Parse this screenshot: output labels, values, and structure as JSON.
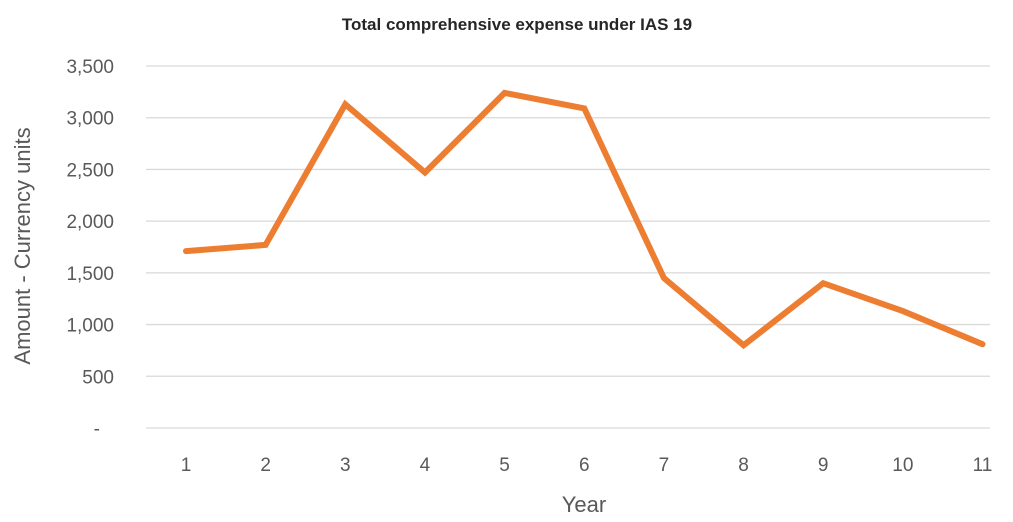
{
  "chart_data": {
    "type": "line",
    "title": "Total comprehensive expense under IAS 19",
    "xlabel": "Year",
    "ylabel": "Amount - Currency units",
    "categories": [
      "1",
      "2",
      "3",
      "4",
      "5",
      "6",
      "7",
      "8",
      "9",
      "10",
      "11"
    ],
    "series": [
      {
        "values": [
          1710,
          1770,
          3130,
          2470,
          3240,
          3090,
          1450,
          800,
          1400,
          1130,
          810
        ]
      }
    ],
    "ylim": [
      0,
      3500
    ],
    "yticks": [
      0,
      500,
      1000,
      1500,
      2000,
      2500,
      3000,
      3500
    ],
    "ytick_labels": [
      "-",
      "500",
      "1,000",
      "1,500",
      "2,000",
      "2,500",
      "3,000",
      "3,500"
    ],
    "grid": true,
    "legend": "none",
    "colors": {
      "line": "#ED7D31"
    }
  }
}
